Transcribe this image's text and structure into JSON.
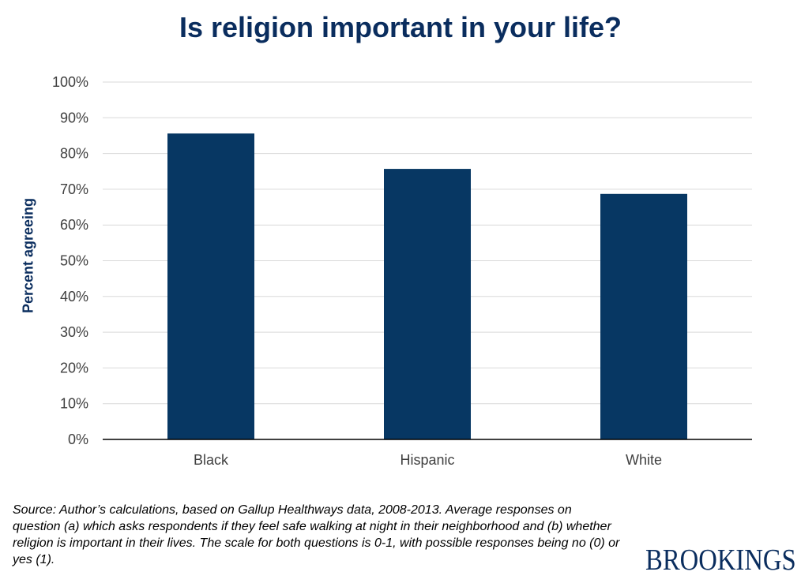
{
  "chart_data": {
    "type": "bar",
    "title": "Is religion important in your life?",
    "xlabel": "",
    "ylabel": "Percent agreeing",
    "categories": [
      "Black",
      "Hispanic",
      "White"
    ],
    "values": [
      85.6,
      75.7,
      68.7
    ],
    "ylim": [
      0,
      100
    ],
    "yticks": [
      "0%",
      "10%",
      "20%",
      "30%",
      "40%",
      "50%",
      "60%",
      "70%",
      "80%",
      "90%",
      "100%"
    ],
    "grid": true,
    "legend": "none",
    "bar_color": "#073763"
  },
  "footer": {
    "source": "Source: Author’s calculations, based on Gallup Healthways data, 2008-2013. Average responses on question (a) which asks respondents if they feel safe walking at night in their neighborhood and  (b) whether religion is important in their lives. The scale for both questions is 0-1, with possible responses being no (0) or yes (1).",
    "logo_text": "BROOKINGS"
  },
  "colors": {
    "title": "#0a2d5e",
    "bar": "#073763",
    "grid": "#d9d9d9",
    "axis": "#000000"
  }
}
